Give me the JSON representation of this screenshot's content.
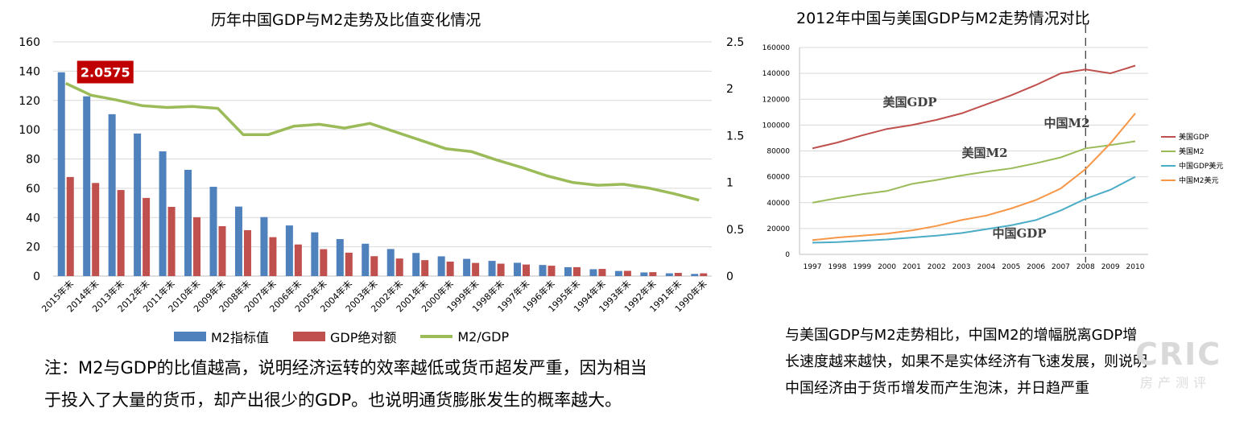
{
  "left_chart": {
    "title": "历年中国GDP与M2走势及比值变化情况",
    "callout": "2.0575",
    "legend": [
      "M2指标值",
      "GDP绝对额",
      "M2/GDP"
    ],
    "colors": {
      "m2": "#4f81bd",
      "gdp": "#c0504d",
      "ratio": "#9bbb59",
      "callout_bg": "#c00000"
    }
  },
  "right_chart": {
    "title": "2012年中国与美国GDP与M2走势情况对比",
    "annotations": [
      "美国GDP",
      "中国M2",
      "美国M2",
      "中国GDP"
    ],
    "legend": [
      "美国GDP",
      "美国M2",
      "中国GDP美元",
      "中国M2美元"
    ],
    "colors": {
      "us_gdp": "#c0504d",
      "us_m2": "#9bbb59",
      "cn_gdp": "#4bacc6",
      "cn_m2": "#f79646"
    }
  },
  "note": {
    "line1": "注：M2与GDP的比值越高，说明经济运转的效率越低或货币超发严重，因为相当",
    "line2": "于投入了大量的货币，却产出很少的GDP。也说明通货膨胀发生的概率越大。"
  },
  "right_text": {
    "line1": "与美国GDP与M2走势相比，中国M2的增幅脱离GDP增",
    "line2": "长速度越来越快，如果不是实体经济有飞速发展，则说明",
    "line3": "中国经济由于货币增发而产生泡沫，并日趋严重"
  },
  "watermark": {
    "main": "CRIC",
    "sub": "房产测评"
  },
  "chart_data": [
    {
      "type": "bar",
      "title": "历年中国GDP与M2走势及比值变化情况",
      "categories": [
        "2015年末",
        "2014年末",
        "2013年末",
        "2012年末",
        "2011年末",
        "2010年末",
        "2009年末",
        "2008年末",
        "2007年末",
        "2006年末",
        "2005年末",
        "2004年末",
        "2003年末",
        "2002年末",
        "2001年末",
        "2000年末",
        "1999年末",
        "1998年末",
        "1997年末",
        "1996年末",
        "1995年末",
        "1994年末",
        "1993年末",
        "1992年末",
        "1991年末",
        "1990年末"
      ],
      "series": [
        {
          "name": "M2指标值",
          "axis": "left",
          "values": [
            139.2,
            122.8,
            110.6,
            97.4,
            85.2,
            72.6,
            61.0,
            47.5,
            40.3,
            34.6,
            29.9,
            25.3,
            22.1,
            18.5,
            15.8,
            13.5,
            11.8,
            10.4,
            9.1,
            7.6,
            6.1,
            4.7,
            3.5,
            2.5,
            1.9,
            1.5
          ]
        },
        {
          "name": "GDP绝对额",
          "axis": "left",
          "values": [
            67.7,
            63.6,
            58.8,
            53.4,
            47.3,
            40.2,
            34.1,
            31.4,
            26.6,
            21.6,
            18.4,
            16.0,
            13.6,
            12.0,
            10.9,
            9.9,
            9.0,
            8.5,
            7.9,
            7.1,
            6.1,
            4.9,
            3.6,
            2.7,
            2.2,
            1.9
          ]
        },
        {
          "name": "M2/GDP",
          "axis": "right",
          "type": "line",
          "values": [
            2.0575,
            1.93,
            1.88,
            1.82,
            1.8,
            1.81,
            1.79,
            1.51,
            1.51,
            1.6,
            1.62,
            1.58,
            1.63,
            1.54,
            1.45,
            1.36,
            1.33,
            1.24,
            1.16,
            1.07,
            1.0,
            0.97,
            0.98,
            0.94,
            0.88,
            0.81
          ]
        }
      ],
      "ylim_left": [
        0,
        160
      ],
      "yticks_left": [
        0,
        20,
        40,
        60,
        80,
        100,
        120,
        140,
        160
      ],
      "ylim_right": [
        0,
        2.5
      ],
      "yticks_right": [
        "0",
        "0.5",
        "1",
        "1.5",
        "2",
        "2.5"
      ],
      "grid": true,
      "legend_position": "bottom"
    },
    {
      "type": "line",
      "title": "2012年中国与美国GDP与M2走势情况对比",
      "x": [
        "1997",
        "1998",
        "1999",
        "2000",
        "2001",
        "2002",
        "2003",
        "2004",
        "2005",
        "2006",
        "2007",
        "2008",
        "2009",
        "2010"
      ],
      "series": [
        {
          "name": "美国GDP",
          "values": [
            82000,
            86500,
            92000,
            97000,
            100000,
            104000,
            109000,
            116000,
            123000,
            131000,
            140000,
            143000,
            140000,
            146000
          ]
        },
        {
          "name": "美国M2",
          "values": [
            40000,
            43500,
            46500,
            49000,
            54500,
            57500,
            61000,
            64000,
            66500,
            70500,
            75000,
            82000,
            84500,
            87500
          ]
        },
        {
          "name": "中国GDP美元",
          "values": [
            9000,
            9500,
            10500,
            11500,
            13000,
            14500,
            16500,
            19500,
            22500,
            26500,
            34000,
            43000,
            50000,
            60000
          ]
        },
        {
          "name": "中国M2美元",
          "values": [
            11000,
            13000,
            14500,
            16000,
            18500,
            22000,
            26500,
            30000,
            35500,
            42000,
            51000,
            66000,
            86000,
            109000
          ]
        }
      ],
      "ylim": [
        0,
        160000
      ],
      "yticks": [
        0,
        20000,
        40000,
        60000,
        80000,
        100000,
        120000,
        140000,
        160000
      ],
      "grid": true,
      "legend_position": "right"
    }
  ]
}
